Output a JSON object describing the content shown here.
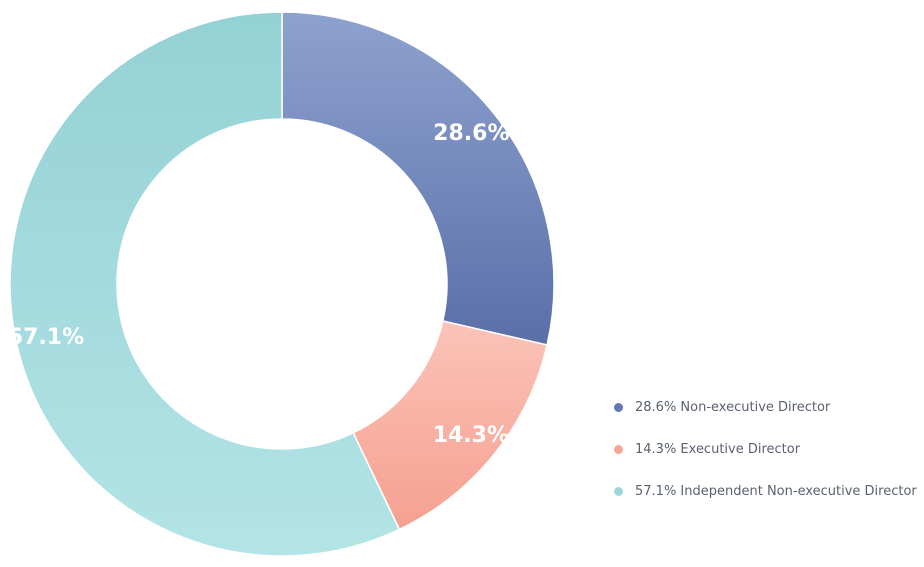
{
  "chart_data": {
    "type": "pie",
    "donut": true,
    "categories": [
      "Non-executive Director",
      "Executive Director",
      "Independent Non-executive Director"
    ],
    "values": [
      28.6,
      14.3,
      57.1
    ],
    "slice_labels": [
      "28.6%",
      "14.3%",
      "57.1%"
    ],
    "legend": {
      "placement": "bottom-right",
      "entries": [
        "28.6% Non-executive Director",
        "14.3% Executive Director",
        "57.1% Independent Non-executive Director"
      ]
    },
    "colors": [
      "#6477b0",
      "#f7a597",
      "#9dd6da"
    ],
    "gradients": [
      [
        "#8ea2d0",
        "#5a6fa8"
      ],
      [
        "#fbc3b8",
        "#f5a090"
      ],
      [
        "#94d1d5",
        "#b3e4e6"
      ]
    ]
  }
}
